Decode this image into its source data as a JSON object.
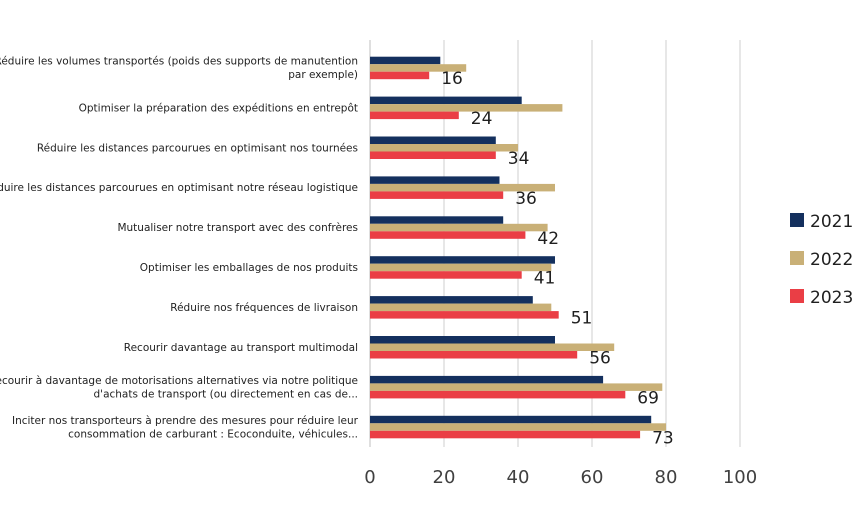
{
  "chart_data": {
    "type": "bar",
    "orientation": "horizontal",
    "categories": [
      [
        "Réduire les volumes transportés (poids des supports de manutention",
        "par exemple)"
      ],
      [
        "Optimiser la préparation des expéditions en entrepôt"
      ],
      [
        "Réduire les distances parcourues en optimisant nos tournées"
      ],
      [
        "Réduire les distances parcourues en optimisant notre réseau logistique"
      ],
      [
        "Mutualiser notre transport avec des confrères"
      ],
      [
        "Optimiser les emballages de nos produits"
      ],
      [
        "Réduire nos fréquences de livraison"
      ],
      [
        "Recourir davantage au transport multimodal"
      ],
      [
        "Recourir à davantage de motorisations alternatives via notre politique",
        "d'achats de transport (ou directement en cas de..."
      ],
      [
        "Inciter nos transporteurs à prendre des mesures pour réduire leur",
        "consommation de carburant : Ecoconduite, véhicules..."
      ]
    ],
    "series": [
      {
        "name": "2021",
        "color": "#14305e",
        "values": [
          19,
          41,
          34,
          35,
          36,
          50,
          44,
          50,
          63,
          76
        ]
      },
      {
        "name": "2022",
        "color": "#c9b077",
        "values": [
          26,
          52,
          40,
          50,
          48,
          49,
          49,
          66,
          79,
          80
        ]
      },
      {
        "name": "2023",
        "color": "#ea3e45",
        "values": [
          16,
          24,
          34,
          36,
          42,
          41,
          51,
          56,
          69,
          73
        ]
      }
    ],
    "data_labels_series": "2023",
    "xlim": [
      0,
      100
    ],
    "xticks": [
      0,
      20,
      40,
      60,
      80,
      100
    ],
    "grid": true,
    "legend_position": "right"
  }
}
